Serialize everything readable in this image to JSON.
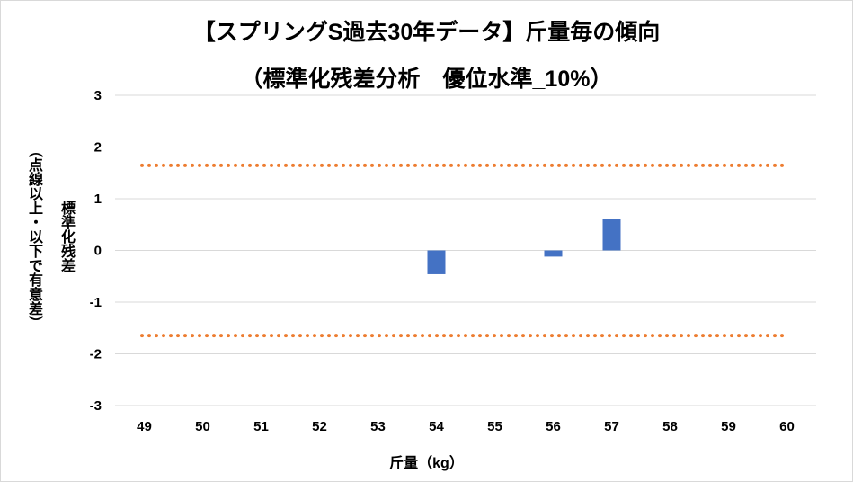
{
  "chart_data": {
    "type": "bar",
    "title": "【スプリングS過去30年データ】斤量毎の傾向",
    "subtitle": "（標準化残差分析　優位水準_10%）",
    "xlabel": "斤量（kg）",
    "ylabel": "標準化残差",
    "ylabel_note": "（点線以上・以下で有意差）",
    "categories": [
      "49",
      "50",
      "51",
      "52",
      "53",
      "54",
      "55",
      "56",
      "57",
      "58",
      "59",
      "60"
    ],
    "values": [
      null,
      null,
      null,
      null,
      null,
      -0.46,
      null,
      -0.12,
      0.61,
      null,
      null,
      null
    ],
    "ylim": [
      -3,
      3
    ],
    "yticks": [
      -3,
      -2,
      -1,
      0,
      1,
      2,
      3
    ],
    "threshold_lines": [
      1.645,
      -1.645
    ],
    "grid": true,
    "colors": {
      "bar": "#4472c4",
      "threshold": "#ed7d31",
      "grid": "#d9d9d9"
    }
  }
}
